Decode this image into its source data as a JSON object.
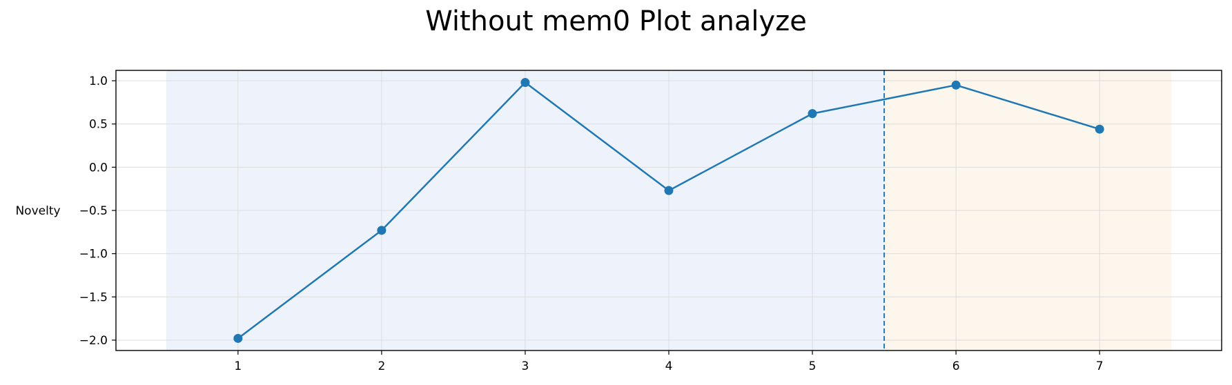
{
  "chart_data": {
    "type": "line",
    "title": "Without mem0 Plot analyze",
    "xlabel": "",
    "ylabel": "Novelty",
    "x": [
      1,
      2,
      3,
      4,
      5,
      6,
      7
    ],
    "series": [
      {
        "values": [
          -1.98,
          -0.73,
          0.98,
          -0.27,
          0.62,
          0.95,
          0.44
        ],
        "color": "#1f77b4",
        "marker": "circle"
      }
    ],
    "xlim": [
      0.15,
      7.85
    ],
    "ylim": [
      -2.12,
      1.12
    ],
    "xticks": [
      "1",
      "2",
      "3",
      "4",
      "5",
      "6",
      "7"
    ],
    "yticks": [
      "1.0",
      "0.5",
      "0.0",
      "−0.5",
      "−1.0",
      "−1.5",
      "−2.0"
    ],
    "ytick_values": [
      1.0,
      0.5,
      0.0,
      -0.5,
      -1.0,
      -1.5,
      -2.0
    ],
    "grid": true,
    "shaded_regions": [
      {
        "x_start": 0.5,
        "x_end": 5.5,
        "color": "#eef3fb"
      },
      {
        "x_start": 5.5,
        "x_end": 7.5,
        "color": "#fdf6ec"
      }
    ],
    "vline": {
      "x": 5.5,
      "style": "dashed",
      "color": "#1f77b4"
    }
  }
}
